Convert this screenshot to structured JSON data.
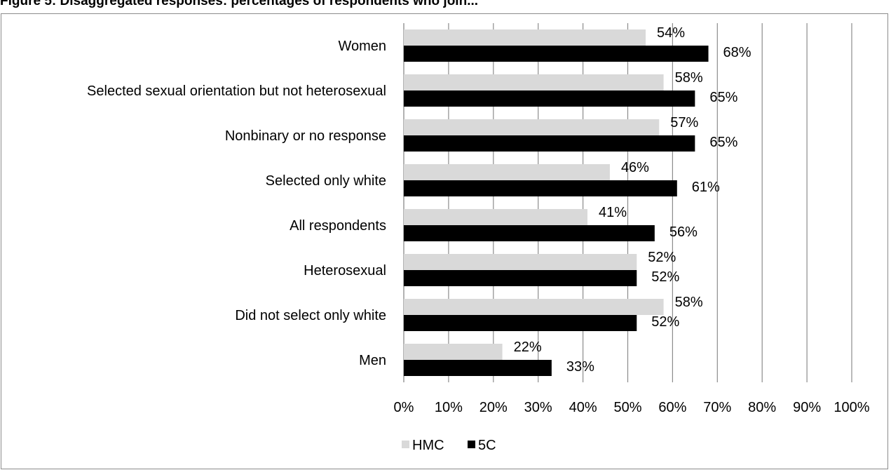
{
  "figure": {
    "caption": "Figure 5: Disaggregated responses: percentages of respondents who join..."
  },
  "chart_data": {
    "type": "bar",
    "orientation": "horizontal",
    "categories": [
      "Women",
      "Selected sexual orientation but not heterosexual",
      "Nonbinary or no response",
      "Selected only white",
      "All respondents",
      "Heterosexual",
      "Did not select only white",
      "Men"
    ],
    "series": [
      {
        "name": "HMC",
        "color": "#d9d9d9",
        "values": [
          54,
          58,
          57,
          46,
          41,
          52,
          58,
          22
        ],
        "labels": [
          "54%",
          "58%",
          "57%",
          "46%",
          "41%",
          "52%",
          "58%",
          "22%"
        ]
      },
      {
        "name": "5C",
        "color": "#000000",
        "values": [
          68,
          65,
          65,
          61,
          56,
          52,
          52,
          33
        ],
        "labels": [
          "68%",
          "65%",
          "65%",
          "61%",
          "56%",
          "52%",
          "52%",
          "33%"
        ]
      }
    ],
    "xlim": [
      0,
      100
    ],
    "xticks": [
      "0%",
      "10%",
      "20%",
      "30%",
      "40%",
      "50%",
      "60%",
      "70%",
      "80%",
      "90%",
      "100%"
    ],
    "grid": "vertical",
    "legend": "bottom"
  }
}
